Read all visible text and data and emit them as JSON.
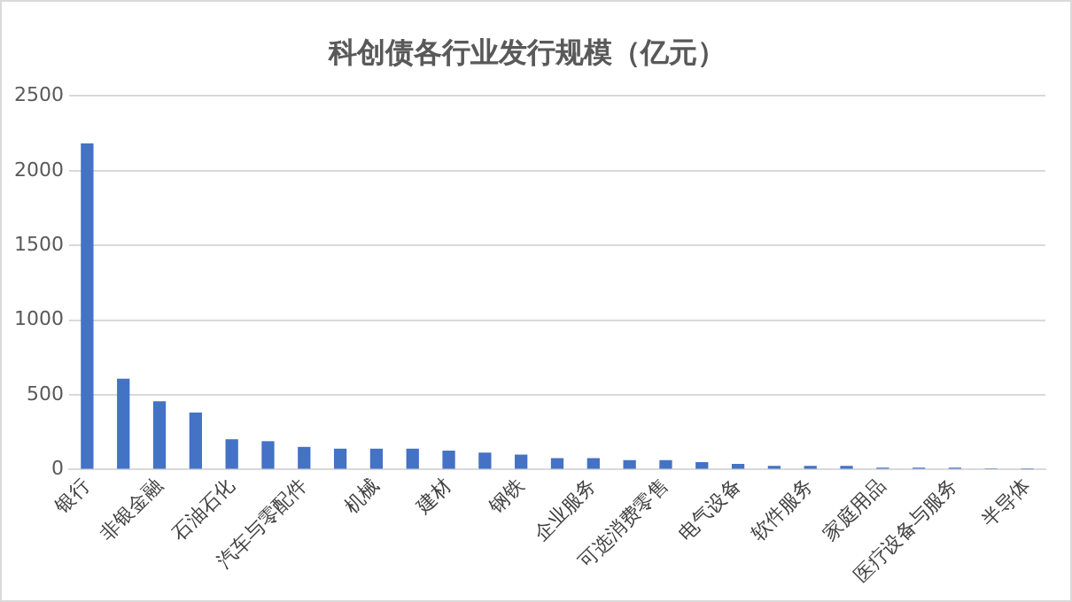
{
  "chart_data": {
    "type": "bar",
    "title": "科创债各行业发行规模（亿元）",
    "categories": [
      "银行",
      null,
      "非银金融",
      null,
      "石油石化",
      null,
      "汽车与零配件",
      null,
      "机械",
      null,
      "建材",
      null,
      "钢铁",
      null,
      "企业服务",
      null,
      "可选消费零售",
      null,
      "电气设备",
      null,
      "软件服务",
      null,
      "家庭用品",
      null,
      "医疗设备与服务",
      null,
      "半导体"
    ],
    "values": [
      2183,
      609,
      457,
      381,
      203,
      190,
      152,
      140,
      140,
      140,
      127,
      114,
      101,
      76,
      76,
      63,
      63,
      50,
      38,
      25,
      25,
      25,
      13,
      13,
      13,
      2,
      1
    ],
    "color": "#4472c4",
    "ylim": [
      0,
      2500
    ],
    "yticks": [
      0,
      500,
      1000,
      1500,
      2000,
      2500
    ],
    "grid": "y",
    "legend": false
  }
}
